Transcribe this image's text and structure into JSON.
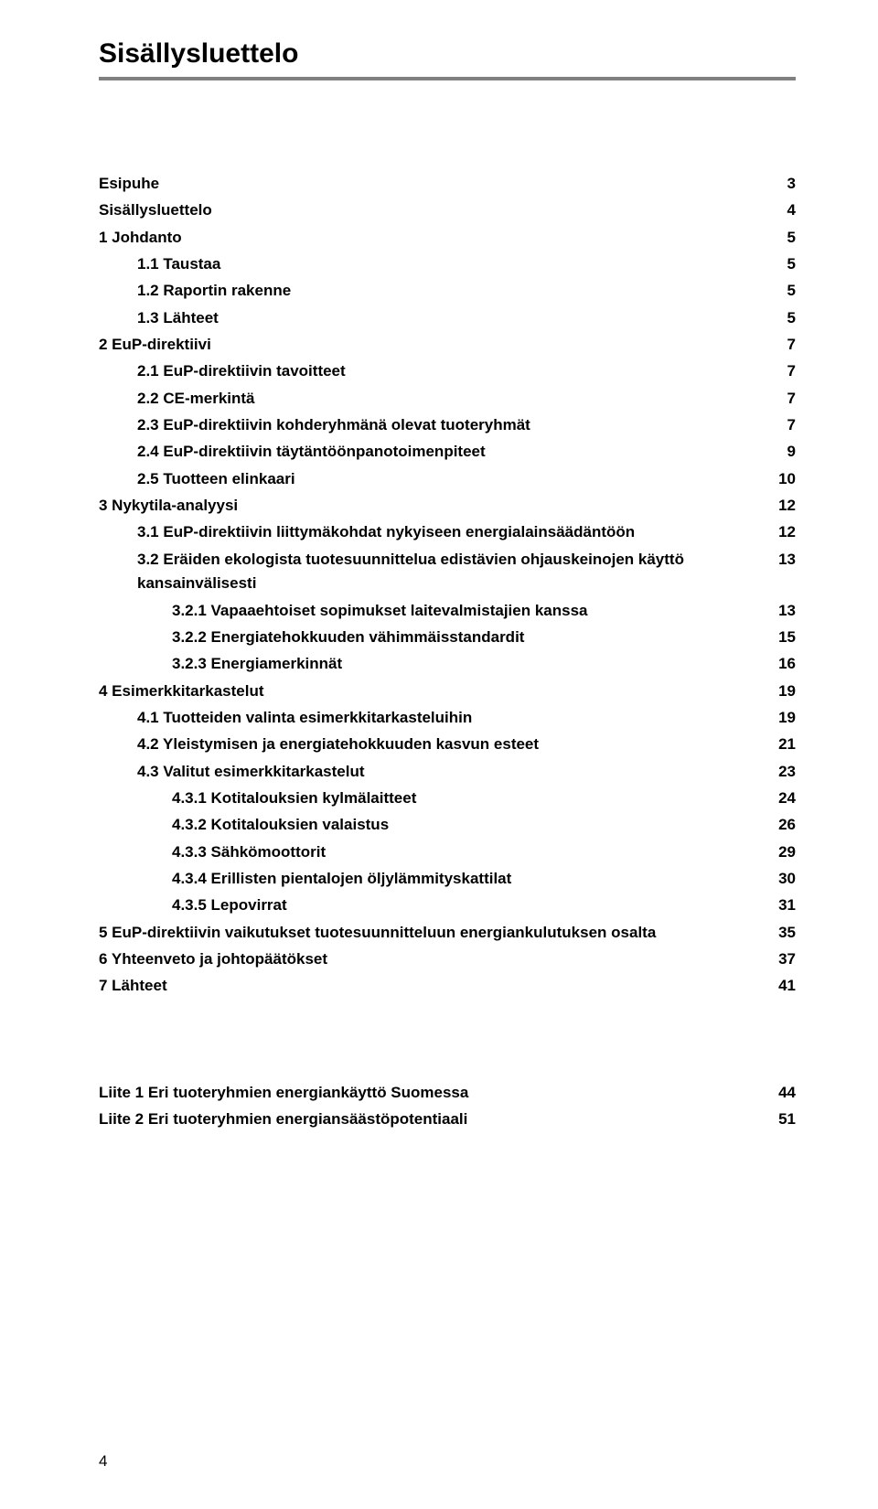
{
  "title": "Sisällysluettelo",
  "pageNumber": "4",
  "toc": [
    {
      "label": "Esipuhe",
      "page": "3",
      "indent": 0
    },
    {
      "label": "Sisällysluettelo",
      "page": "4",
      "indent": 0
    },
    {
      "label": "1   Johdanto",
      "page": "5",
      "indent": 0
    },
    {
      "label": "1.1    Taustaa",
      "page": "5",
      "indent": 1
    },
    {
      "label": "1.2    Raportin rakenne",
      "page": "5",
      "indent": 1
    },
    {
      "label": "1.3    Lähteet",
      "page": "5",
      "indent": 1
    },
    {
      "label": "2   EuP-direktiivi",
      "page": "7",
      "indent": 0
    },
    {
      "label": "2.1    EuP-direktiivin tavoitteet",
      "page": "7",
      "indent": 1
    },
    {
      "label": "2.2    CE-merkintä",
      "page": "7",
      "indent": 1
    },
    {
      "label": "2.3    EuP-direktiivin kohderyhmänä olevat tuoteryhmät",
      "page": "7",
      "indent": 1
    },
    {
      "label": "2.4    EuP-direktiivin täytäntöönpanotoimenpiteet",
      "page": "9",
      "indent": 1
    },
    {
      "label": "2.5    Tuotteen elinkaari",
      "page": "10",
      "indent": 1
    },
    {
      "label": "3   Nykytila-analyysi",
      "page": "12",
      "indent": 0
    },
    {
      "label": "3.1    EuP-direktiivin liittymäkohdat nykyiseen energialainsäädäntöön",
      "page": "12",
      "indent": 1
    },
    {
      "label": "3.2    Eräiden ekologista tuotesuunnittelua edistävien ohjauskeinojen käyttö kansainvälisesti",
      "page": "13",
      "indent": 1
    },
    {
      "label": "3.2.1 Vapaaehtoiset sopimukset laitevalmistajien kanssa",
      "page": "13",
      "indent": 3
    },
    {
      "label": "3.2.2 Energiatehokkuuden vähimmäisstandardit",
      "page": "15",
      "indent": 3
    },
    {
      "label": "3.2.3 Energiamerkinnät",
      "page": "16",
      "indent": 3
    },
    {
      "label": "4   Esimerkkitarkastelut",
      "page": "19",
      "indent": 0
    },
    {
      "label": "4.1    Tuotteiden valinta esimerkkitarkasteluihin",
      "page": "19",
      "indent": 1
    },
    {
      "label": "4.2    Yleistymisen ja energiatehokkuuden kasvun esteet",
      "page": "21",
      "indent": 1
    },
    {
      "label": "4.3    Valitut esimerkkitarkastelut",
      "page": "23",
      "indent": 1
    },
    {
      "label": "4.3.1  Kotitalouksien kylmälaitteet",
      "page": "24",
      "indent": 3
    },
    {
      "label": "4.3.2  Kotitalouksien valaistus",
      "page": "26",
      "indent": 3
    },
    {
      "label": "4.3.3  Sähkömoottorit",
      "page": "29",
      "indent": 3
    },
    {
      "label": "4.3.4  Erillisten pientalojen öljylämmityskattilat",
      "page": "30",
      "indent": 3
    },
    {
      "label": "4.3.5  Lepovirrat",
      "page": "31",
      "indent": 3
    },
    {
      "label": "5   EuP-direktiivin vaikutukset tuotesuunnitteluun energiankulutuksen osalta",
      "page": "35",
      "indent": 0
    },
    {
      "label": "6   Yhteenveto ja johtopäätökset",
      "page": "37",
      "indent": 0
    },
    {
      "label": "7   Lähteet",
      "page": "41",
      "indent": 0
    }
  ],
  "appendix": [
    {
      "label": "Liite 1 Eri tuoteryhmien energiankäyttö Suomessa",
      "page": "44",
      "indent": 0
    },
    {
      "label": "Liite 2 Eri tuoteryhmien energiansäästöpotentiaali",
      "page": "51",
      "indent": 0
    }
  ]
}
